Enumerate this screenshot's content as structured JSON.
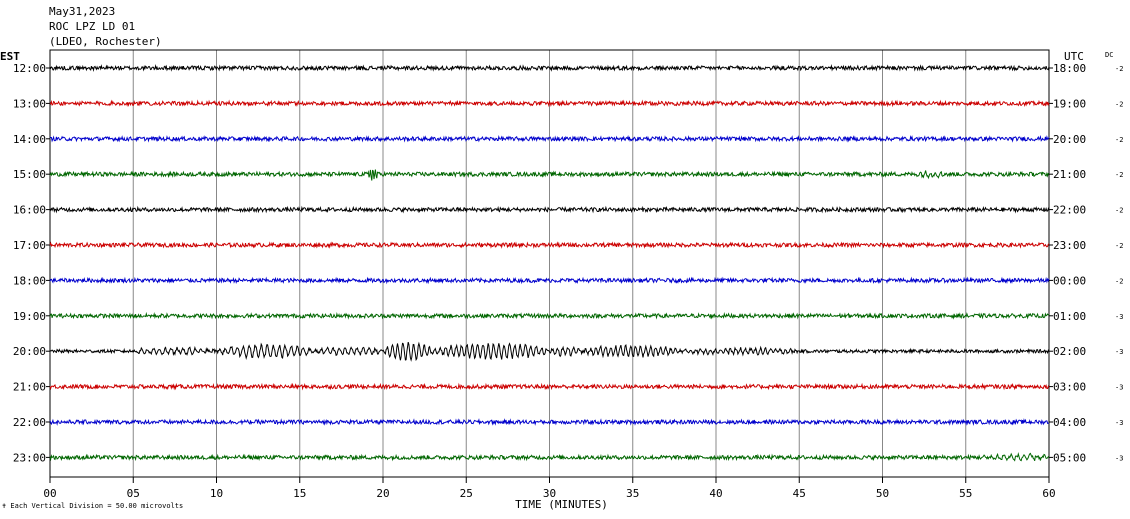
{
  "header": {
    "date": "May31,2023",
    "station": "ROC LPZ LD 01",
    "network": "(LDEO, Rochester)"
  },
  "chart_data": {
    "type": "line",
    "title": "",
    "xlabel": "TIME (MINUTES)",
    "x_ticks": [
      "00",
      "05",
      "10",
      "15",
      "20",
      "25",
      "30",
      "35",
      "40",
      "45",
      "50",
      "55",
      "60"
    ],
    "xlim": [
      0,
      60
    ],
    "left_axis_label": "EST",
    "right_axis_label": "UTC",
    "dc_label": "DC",
    "footer_note": "Each Vertical Division =   50.00 microvolts",
    "grid": true,
    "trace_colors": [
      "#000000",
      "#cc0000",
      "#0000cc",
      "#006600"
    ],
    "rows": [
      {
        "est": "12:00",
        "utc": "18:00",
        "dc": "-2",
        "color": "#000000",
        "noise": 2.0,
        "events": []
      },
      {
        "est": "13:00",
        "utc": "19:00",
        "dc": "-2",
        "color": "#cc0000",
        "noise": 2.0,
        "events": []
      },
      {
        "est": "14:00",
        "utc": "20:00",
        "dc": "-2",
        "color": "#0000cc",
        "noise": 2.0,
        "events": []
      },
      {
        "est": "15:00",
        "utc": "21:00",
        "dc": "-2",
        "color": "#006600",
        "noise": 2.0,
        "events": [
          {
            "start": 19.1,
            "end": 19.7,
            "amp": 6,
            "period": 0.15
          },
          {
            "start": 52,
            "end": 54,
            "amp": 2.2,
            "period": 0.3
          }
        ]
      },
      {
        "est": "16:00",
        "utc": "22:00",
        "dc": "-2",
        "color": "#000000",
        "noise": 2.0,
        "events": []
      },
      {
        "est": "17:00",
        "utc": "23:00",
        "dc": "-2",
        "color": "#cc0000",
        "noise": 2.0,
        "events": []
      },
      {
        "est": "18:00",
        "utc": "00:00",
        "dc": "-2",
        "color": "#0000cc",
        "noise": 2.0,
        "events": []
      },
      {
        "est": "19:00",
        "utc": "01:00",
        "dc": "-3",
        "color": "#006600",
        "noise": 2.0,
        "events": []
      },
      {
        "est": "20:00",
        "utc": "02:00",
        "dc": "-3",
        "color": "#000000",
        "noise": 1.6,
        "events": [
          {
            "start": 5,
            "end": 10,
            "amp": 3,
            "period": 0.36
          },
          {
            "start": 10,
            "end": 16,
            "amp": 6,
            "period": 0.36
          },
          {
            "start": 16,
            "end": 20,
            "amp": 3.5,
            "period": 0.36
          },
          {
            "start": 20,
            "end": 23,
            "amp": 8,
            "period": 0.32
          },
          {
            "start": 23,
            "end": 30,
            "amp": 7,
            "period": 0.32
          },
          {
            "start": 30,
            "end": 32,
            "amp": 4,
            "period": 0.32
          },
          {
            "start": 32,
            "end": 38,
            "amp": 5,
            "period": 0.3
          },
          {
            "start": 38,
            "end": 45,
            "amp": 2.5,
            "period": 0.3
          }
        ]
      },
      {
        "est": "21:00",
        "utc": "03:00",
        "dc": "-3",
        "color": "#cc0000",
        "noise": 2.0,
        "events": []
      },
      {
        "est": "22:00",
        "utc": "04:00",
        "dc": "-3",
        "color": "#0000cc",
        "noise": 2.0,
        "events": []
      },
      {
        "est": "23:00",
        "utc": "05:00",
        "dc": "-3",
        "color": "#006600",
        "noise": 2.0,
        "events": [
          {
            "start": 56,
            "end": 60,
            "amp": 2.6,
            "period": 0.4
          }
        ]
      }
    ]
  }
}
